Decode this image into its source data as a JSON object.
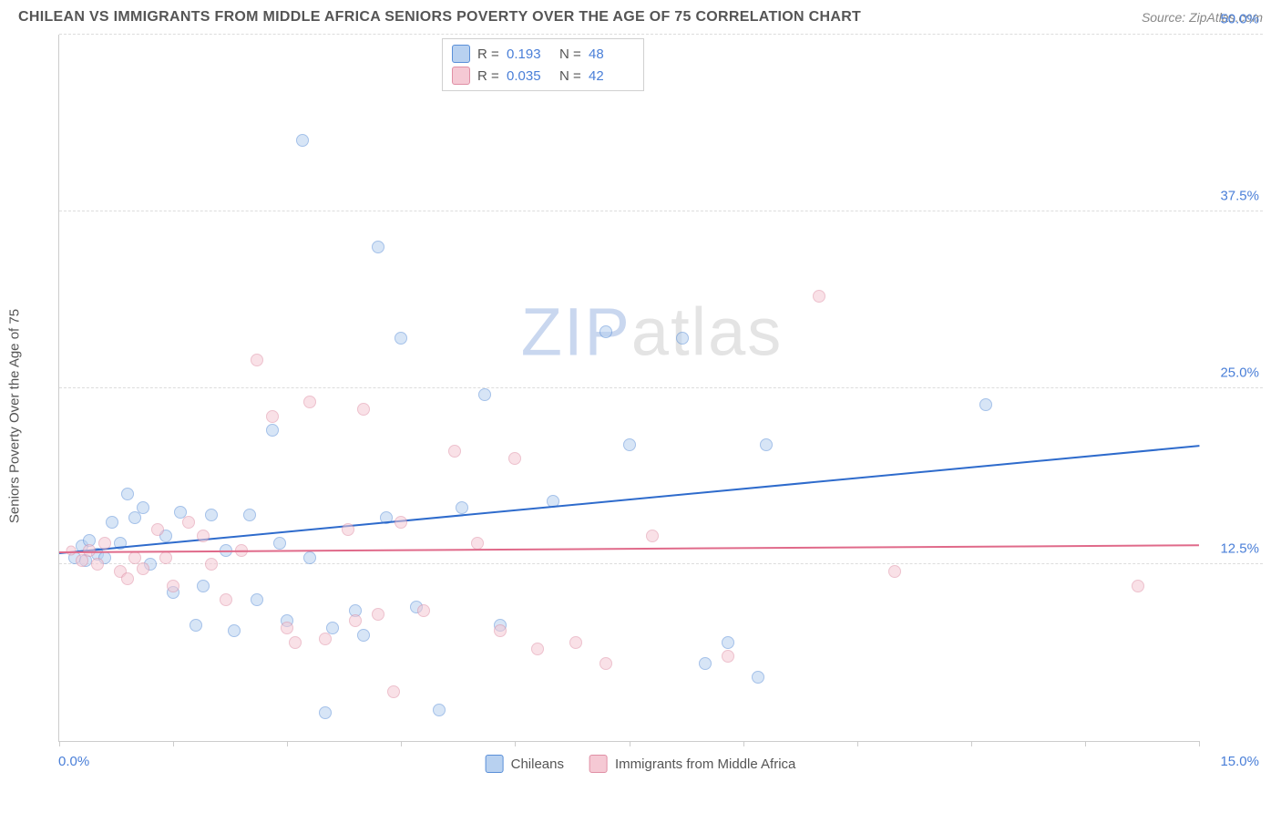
{
  "title": "CHILEAN VS IMMIGRANTS FROM MIDDLE AFRICA SENIORS POVERTY OVER THE AGE OF 75 CORRELATION CHART",
  "source": "Source: ZipAtlas.com",
  "y_axis_label": "Seniors Poverty Over the Age of 75",
  "watermark": {
    "part1": "ZIP",
    "part2": "atlas"
  },
  "chart": {
    "type": "scatter",
    "background_color": "#ffffff",
    "grid_color": "#dddddd",
    "axis_color": "#cccccc",
    "text_color": "#555555",
    "value_color": "#4a7fd8",
    "xlim": [
      0,
      15
    ],
    "ylim": [
      0,
      50
    ],
    "x_ticks": [
      0,
      1.5,
      3,
      4.5,
      6,
      7.5,
      9,
      10.5,
      12,
      13.5,
      15
    ],
    "y_ticks": [
      12.5,
      25,
      37.5,
      50
    ],
    "x_tick_labels": {
      "min": "0.0%",
      "max": "15.0%"
    },
    "y_tick_labels": [
      "12.5%",
      "25.0%",
      "37.5%",
      "50.0%"
    ],
    "marker_size": 14,
    "marker_opacity": 0.55,
    "line_width": 2
  },
  "series": [
    {
      "name": "Chileans",
      "fill_color": "#b8d1f0",
      "stroke_color": "#5a8fd8",
      "line_color": "#2e6bcc",
      "R": "0.193",
      "N": "48",
      "trend": {
        "x1": 0,
        "y1": 13.2,
        "x2": 15,
        "y2": 20.8
      },
      "points": [
        {
          "x": 0.2,
          "y": 13.0
        },
        {
          "x": 0.3,
          "y": 13.8
        },
        {
          "x": 0.35,
          "y": 12.8
        },
        {
          "x": 0.4,
          "y": 14.2
        },
        {
          "x": 0.5,
          "y": 13.2
        },
        {
          "x": 0.6,
          "y": 13.0
        },
        {
          "x": 0.7,
          "y": 15.5
        },
        {
          "x": 0.8,
          "y": 14.0
        },
        {
          "x": 0.9,
          "y": 17.5
        },
        {
          "x": 1.0,
          "y": 15.8
        },
        {
          "x": 1.1,
          "y": 16.5
        },
        {
          "x": 1.2,
          "y": 12.5
        },
        {
          "x": 1.4,
          "y": 14.5
        },
        {
          "x": 1.5,
          "y": 10.5
        },
        {
          "x": 1.6,
          "y": 16.2
        },
        {
          "x": 1.8,
          "y": 8.2
        },
        {
          "x": 1.9,
          "y": 11.0
        },
        {
          "x": 2.0,
          "y": 16.0
        },
        {
          "x": 2.2,
          "y": 13.5
        },
        {
          "x": 2.3,
          "y": 7.8
        },
        {
          "x": 2.5,
          "y": 16.0
        },
        {
          "x": 2.6,
          "y": 10.0
        },
        {
          "x": 2.8,
          "y": 22.0
        },
        {
          "x": 2.9,
          "y": 14.0
        },
        {
          "x": 3.0,
          "y": 8.5
        },
        {
          "x": 3.2,
          "y": 42.5
        },
        {
          "x": 3.3,
          "y": 13.0
        },
        {
          "x": 3.5,
          "y": 2.0
        },
        {
          "x": 3.6,
          "y": 8.0
        },
        {
          "x": 3.9,
          "y": 9.2
        },
        {
          "x": 4.0,
          "y": 7.5
        },
        {
          "x": 4.2,
          "y": 35.0
        },
        {
          "x": 4.3,
          "y": 15.8
        },
        {
          "x": 4.5,
          "y": 28.5
        },
        {
          "x": 4.7,
          "y": 9.5
        },
        {
          "x": 5.0,
          "y": 2.2
        },
        {
          "x": 5.3,
          "y": 16.5
        },
        {
          "x": 5.6,
          "y": 24.5
        },
        {
          "x": 5.8,
          "y": 8.2
        },
        {
          "x": 6.5,
          "y": 17.0
        },
        {
          "x": 7.2,
          "y": 29.0
        },
        {
          "x": 7.5,
          "y": 21.0
        },
        {
          "x": 8.2,
          "y": 28.5
        },
        {
          "x": 8.8,
          "y": 7.0
        },
        {
          "x": 9.2,
          "y": 4.5
        },
        {
          "x": 9.3,
          "y": 21.0
        },
        {
          "x": 12.2,
          "y": 23.8
        },
        {
          "x": 8.5,
          "y": 5.5
        }
      ]
    },
    {
      "name": "Immigrants from Middle Africa",
      "fill_color": "#f5c9d4",
      "stroke_color": "#e08fa5",
      "line_color": "#e06a8a",
      "R": "0.035",
      "N": "42",
      "trend": {
        "x1": 0,
        "y1": 13.3,
        "x2": 15,
        "y2": 13.8
      },
      "points": [
        {
          "x": 0.15,
          "y": 13.5,
          "r": 11
        },
        {
          "x": 0.3,
          "y": 12.8
        },
        {
          "x": 0.4,
          "y": 13.5
        },
        {
          "x": 0.5,
          "y": 12.5
        },
        {
          "x": 0.6,
          "y": 14.0
        },
        {
          "x": 0.8,
          "y": 12.0
        },
        {
          "x": 0.9,
          "y": 11.5
        },
        {
          "x": 1.0,
          "y": 13.0
        },
        {
          "x": 1.1,
          "y": 12.2
        },
        {
          "x": 1.3,
          "y": 15.0
        },
        {
          "x": 1.4,
          "y": 13.0
        },
        {
          "x": 1.5,
          "y": 11.0
        },
        {
          "x": 1.7,
          "y": 15.5
        },
        {
          "x": 1.9,
          "y": 14.5
        },
        {
          "x": 2.0,
          "y": 12.5
        },
        {
          "x": 2.2,
          "y": 10.0
        },
        {
          "x": 2.4,
          "y": 13.5
        },
        {
          "x": 2.6,
          "y": 27.0
        },
        {
          "x": 2.8,
          "y": 23.0
        },
        {
          "x": 3.0,
          "y": 8.0
        },
        {
          "x": 3.1,
          "y": 7.0
        },
        {
          "x": 3.3,
          "y": 24.0
        },
        {
          "x": 3.5,
          "y": 7.2
        },
        {
          "x": 3.8,
          "y": 15.0
        },
        {
          "x": 3.9,
          "y": 8.5
        },
        {
          "x": 4.0,
          "y": 23.5
        },
        {
          "x": 4.2,
          "y": 9.0
        },
        {
          "x": 4.4,
          "y": 3.5
        },
        {
          "x": 4.5,
          "y": 15.5
        },
        {
          "x": 4.8,
          "y": 9.2
        },
        {
          "x": 5.2,
          "y": 20.5
        },
        {
          "x": 5.5,
          "y": 14.0
        },
        {
          "x": 5.8,
          "y": 7.8
        },
        {
          "x": 6.0,
          "y": 20.0
        },
        {
          "x": 6.3,
          "y": 6.5
        },
        {
          "x": 6.8,
          "y": 7.0
        },
        {
          "x": 7.2,
          "y": 5.5
        },
        {
          "x": 8.8,
          "y": 6.0
        },
        {
          "x": 10.0,
          "y": 31.5
        },
        {
          "x": 11.0,
          "y": 12.0
        },
        {
          "x": 14.2,
          "y": 11.0
        },
        {
          "x": 7.8,
          "y": 14.5
        }
      ]
    }
  ],
  "legend": {
    "top_box": {
      "r_label": "R =",
      "n_label": "N ="
    },
    "bottom_items": [
      "Chileans",
      "Immigrants from Middle Africa"
    ]
  }
}
